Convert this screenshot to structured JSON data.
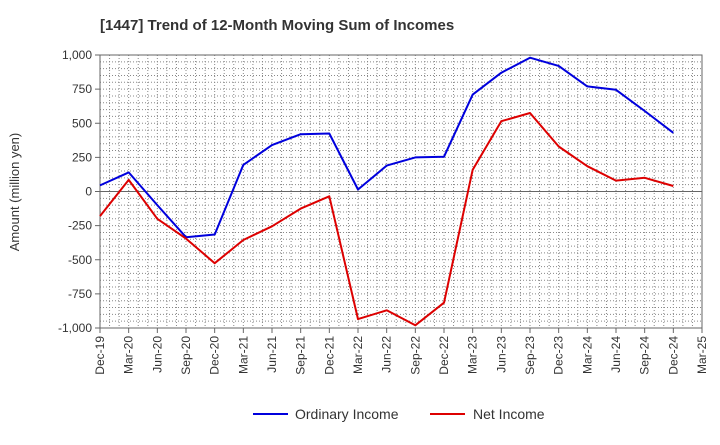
{
  "chart_data": {
    "type": "line",
    "title": "[1447]  Trend of 12-Month Moving Sum of Incomes",
    "xlabel": "",
    "ylabel": "Amount (million yen)",
    "ylim": [
      -1000,
      1000
    ],
    "yticks": [
      1000,
      750,
      500,
      250,
      0,
      -250,
      -500,
      -750,
      -1000
    ],
    "ytick_labels": [
      "1,000",
      "750",
      "500",
      "250",
      "0",
      "-250",
      "-500",
      "-750",
      "-1,000"
    ],
    "grid": true,
    "legend_position": "bottom-center",
    "categories": [
      "Dec-19",
      "Mar-20",
      "Jun-20",
      "Sep-20",
      "Dec-20",
      "Mar-21",
      "Jun-21",
      "Sep-21",
      "Dec-21",
      "Mar-22",
      "Jun-22",
      "Sep-22",
      "Dec-22",
      "Mar-23",
      "Jun-23",
      "Sep-23",
      "Dec-23",
      "Mar-24",
      "Jun-24",
      "Sep-24",
      "Dec-24",
      "Mar-25"
    ],
    "series": [
      {
        "name": "Ordinary Income",
        "color": "#0000dd",
        "values": [
          45,
          140,
          -100,
          -335,
          -315,
          195,
          340,
          420,
          425,
          15,
          190,
          250,
          255,
          710,
          870,
          980,
          920,
          770,
          745,
          590,
          430,
          null
        ]
      },
      {
        "name": "Net Income",
        "color": "#dd0000",
        "values": [
          -180,
          85,
          -200,
          -345,
          -525,
          -355,
          -255,
          -125,
          -35,
          -935,
          -870,
          -980,
          -815,
          160,
          515,
          575,
          330,
          185,
          80,
          100,
          40,
          null
        ]
      }
    ]
  }
}
